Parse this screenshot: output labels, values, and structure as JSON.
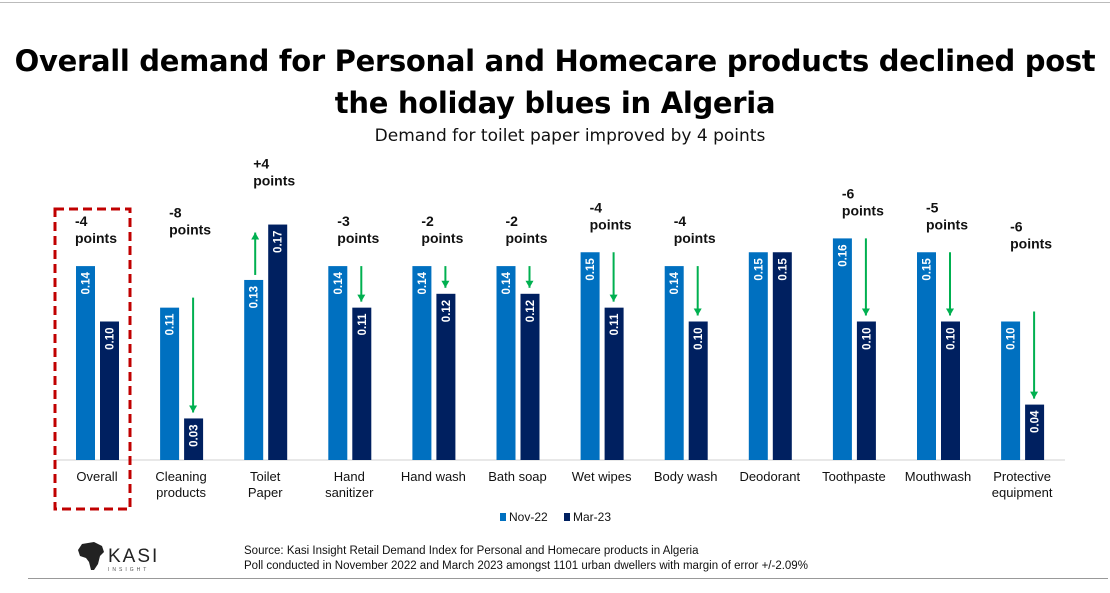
{
  "chart_data": {
    "type": "bar",
    "title": "Overall demand for Personal and Homecare products declined post the holiday blues in Algeria",
    "subtitle": "Demand for toilet paper improved by 4 points",
    "categories": [
      "Overall",
      "Cleaning products",
      "Toilet Paper",
      "Hand sanitizer",
      "Hand wash",
      "Bath soap",
      "Wet wipes",
      "Body wash",
      "Deodorant",
      "Toothpaste",
      "Mouthwash",
      "Protective equipment"
    ],
    "series": [
      {
        "name": "Nov-22",
        "color": "#0070C0",
        "values": [
          0.14,
          0.11,
          0.13,
          0.14,
          0.14,
          0.14,
          0.15,
          0.14,
          0.15,
          0.16,
          0.15,
          0.1
        ]
      },
      {
        "name": "Mar-23",
        "color": "#002060",
        "values": [
          0.1,
          0.03,
          0.17,
          0.11,
          0.12,
          0.12,
          0.11,
          0.1,
          0.15,
          0.1,
          0.1,
          0.04
        ]
      }
    ],
    "annotations": [
      "-4 points",
      "-8 points",
      "+4 points",
      "-3 points",
      "-2 points",
      "-2 points",
      "-4 points",
      "-4 points",
      "",
      "-6 points",
      "-5 points",
      "-6 points"
    ],
    "arrow_color": "#00B050",
    "highlight": {
      "category": "Overall",
      "color": "#C00000",
      "style": "dashed"
    },
    "legend_position": "bottom",
    "ylim": [
      0,
      0.18
    ],
    "grid": false
  },
  "source": {
    "line1": "Source: Kasi Insight Retail Demand Index for Personal and Homecare products in Algeria",
    "line2": "Poll conducted in November 2022 and March 2023 amongst 1101 urban dwellers with margin of error +/-2.09%"
  },
  "logo": {
    "text": "KASI",
    "subtext": "INSIGHT"
  }
}
